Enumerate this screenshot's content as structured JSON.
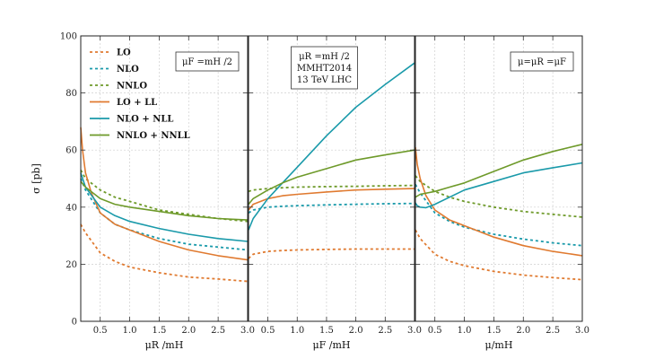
{
  "chart_data": {
    "type": "line",
    "ylabel": "σ [pb]",
    "ylim": [
      0,
      100
    ],
    "y_ticks": [
      "0",
      "20",
      "40",
      "60",
      "80",
      "100"
    ],
    "grid": true,
    "legend_placement": "top-left of first panel",
    "legend": [
      {
        "label": "LO",
        "color": "#e07a30",
        "dash": true
      },
      {
        "label": "NLO",
        "color": "#1a9aaa",
        "dash": true
      },
      {
        "label": "NNLO",
        "color": "#6e9a2a",
        "dash": true
      },
      {
        "label": "LO + LL",
        "color": "#e07a30",
        "dash": false
      },
      {
        "label": "NLO + NLL",
        "color": "#1a9aaa",
        "dash": false
      },
      {
        "label": "NNLO + NNLL",
        "color": "#6e9a2a",
        "dash": false
      }
    ],
    "panels": [
      {
        "xlabel": "μR /mH",
        "xlim": [
          0.17,
          3.0
        ],
        "x_ticks": [
          "0.5",
          "1.0",
          "1.5",
          "2.0",
          "2.5",
          "3.0"
        ],
        "annotation": [
          "μF =mH /2"
        ],
        "series": [
          {
            "name": "LO",
            "color": "#e07a30",
            "dash": true,
            "x": [
              0.17,
              0.25,
              0.5,
              0.75,
              1.0,
              1.5,
              2.0,
              2.5,
              3.0
            ],
            "y": [
              34,
              31,
              24,
              21,
              19,
              17,
              15.5,
              14.8,
              14
            ]
          },
          {
            "name": "NLO",
            "color": "#1a9aaa",
            "dash": true,
            "x": [
              0.17,
              0.25,
              0.5,
              0.75,
              1.0,
              1.5,
              2.0,
              2.5,
              3.0
            ],
            "y": [
              50,
              46,
              38,
              34,
              32,
              29,
              27,
              26,
              25
            ]
          },
          {
            "name": "NNLO",
            "color": "#6e9a2a",
            "dash": true,
            "x": [
              0.17,
              0.25,
              0.5,
              0.75,
              1.0,
              1.5,
              2.0,
              2.5,
              3.0
            ],
            "y": [
              53,
              50,
              46,
              43.5,
              42,
              39,
              37.5,
              36,
              35
            ]
          },
          {
            "name": "LO + LL",
            "color": "#e07a30",
            "dash": false,
            "x": [
              0.17,
              0.2,
              0.25,
              0.35,
              0.5,
              0.75,
              1.0,
              1.5,
              2.0,
              2.5,
              3.0
            ],
            "y": [
              68,
              60,
              52,
              45,
              38,
              34,
              32,
              28,
              25,
              23,
              21.5
            ]
          },
          {
            "name": "NLO + NLL",
            "color": "#1a9aaa",
            "dash": false,
            "x": [
              0.17,
              0.25,
              0.5,
              0.75,
              1.0,
              1.5,
              2.0,
              2.5,
              3.0
            ],
            "y": [
              52,
              47,
              40,
              37,
              35,
              32.5,
              30.5,
              29,
              28
            ]
          },
          {
            "name": "NNLO + NNLL",
            "color": "#6e9a2a",
            "dash": false,
            "x": [
              0.17,
              0.25,
              0.5,
              0.75,
              1.0,
              1.5,
              2.0,
              2.5,
              3.0
            ],
            "y": [
              49,
              47,
              43,
              41,
              40,
              38.5,
              37,
              36,
              35.5
            ]
          }
        ]
      },
      {
        "xlabel": "μF /mH",
        "xlim": [
          0.17,
          3.0
        ],
        "x_ticks": [
          "0.5",
          "1.0",
          "1.5",
          "2.0",
          "2.5",
          "3.0"
        ],
        "annotation": [
          "μR =mH /2",
          "MMHT2014",
          "13 TeV LHC"
        ],
        "series": [
          {
            "name": "LO",
            "color": "#e07a30",
            "dash": true,
            "x": [
              0.17,
              0.25,
              0.5,
              0.75,
              1.0,
              1.5,
              2.0,
              2.5,
              3.0
            ],
            "y": [
              22,
              23.5,
              24.5,
              24.8,
              25,
              25.2,
              25.3,
              25.3,
              25.3
            ]
          },
          {
            "name": "NLO",
            "color": "#1a9aaa",
            "dash": true,
            "x": [
              0.17,
              0.25,
              0.5,
              0.75,
              1.0,
              1.5,
              2.0,
              2.5,
              3.0
            ],
            "y": [
              38,
              39,
              40,
              40.3,
              40.5,
              40.8,
              41,
              41.2,
              41.3
            ]
          },
          {
            "name": "NNLO",
            "color": "#6e9a2a",
            "dash": true,
            "x": [
              0.17,
              0.25,
              0.5,
              0.75,
              1.0,
              1.5,
              2.0,
              2.5,
              3.0
            ],
            "y": [
              45.5,
              46,
              46.5,
              46.8,
              47,
              47.2,
              47.3,
              47.5,
              47.6
            ]
          },
          {
            "name": "LO + LL",
            "color": "#e07a30",
            "dash": false,
            "x": [
              0.17,
              0.25,
              0.5,
              0.75,
              1.0,
              1.5,
              2.0,
              2.5,
              3.0
            ],
            "y": [
              39,
              41,
              43,
              44,
              44.5,
              45.3,
              46,
              46.3,
              46.5
            ]
          },
          {
            "name": "NLO + NLL",
            "color": "#1a9aaa",
            "dash": false,
            "x": [
              0.17,
              0.25,
              0.5,
              0.75,
              1.0,
              1.5,
              2.0,
              2.5,
              3.0
            ],
            "y": [
              32,
              36,
              43,
              48.5,
              54,
              65,
              75,
              83,
              90.5
            ]
          },
          {
            "name": "NNLO + NNLL",
            "color": "#6e9a2a",
            "dash": false,
            "x": [
              0.17,
              0.25,
              0.5,
              0.75,
              1.0,
              1.5,
              2.0,
              2.5,
              3.0
            ],
            "y": [
              41,
              43,
              46,
              48.5,
              50.5,
              53.5,
              56.5,
              58.3,
              60
            ]
          }
        ]
      },
      {
        "xlabel": "μ/mH",
        "xlim": [
          0.17,
          3.0
        ],
        "x_ticks": [
          "0.5",
          "1.0",
          "1.5",
          "2.0",
          "2.5",
          "3.0"
        ],
        "annotation": [
          "μ=μR =μF"
        ],
        "series": [
          {
            "name": "LO",
            "color": "#e07a30",
            "dash": true,
            "x": [
              0.17,
              0.25,
              0.5,
              0.75,
              1.0,
              1.5,
              2.0,
              2.5,
              3.0
            ],
            "y": [
              32,
              29,
              23.5,
              21,
              19.5,
              17.5,
              16.2,
              15.3,
              14.6
            ]
          },
          {
            "name": "NLO",
            "color": "#1a9aaa",
            "dash": true,
            "x": [
              0.17,
              0.25,
              0.5,
              0.75,
              1.0,
              1.5,
              2.0,
              2.5,
              3.0
            ],
            "y": [
              48,
              45,
              38,
              35,
              33,
              30.5,
              28.8,
              27.5,
              26.5
            ]
          },
          {
            "name": "NNLO",
            "color": "#6e9a2a",
            "dash": true,
            "x": [
              0.17,
              0.25,
              0.5,
              0.75,
              1.0,
              1.5,
              2.0,
              2.5,
              3.0
            ],
            "y": [
              51,
              49,
              45.5,
              43.5,
              42,
              40,
              38.5,
              37.5,
              36.5
            ]
          },
          {
            "name": "LO + LL",
            "color": "#e07a30",
            "dash": false,
            "x": [
              0.17,
              0.2,
              0.25,
              0.35,
              0.5,
              0.75,
              1.0,
              1.5,
              2.0,
              2.5,
              3.0
            ],
            "y": [
              61,
              55,
              50,
              44,
              39,
              35.5,
              33.5,
              29.5,
              26.5,
              24.5,
              23
            ]
          },
          {
            "name": "NLO + NLL",
            "color": "#1a9aaa",
            "dash": false,
            "x": [
              0.17,
              0.2,
              0.25,
              0.35,
              0.5,
              0.75,
              1.0,
              1.5,
              2.0,
              2.5,
              3.0
            ],
            "y": [
              41.5,
              40.5,
              40,
              39.8,
              41,
              43.5,
              46,
              49,
              52,
              53.8,
              55.5
            ]
          },
          {
            "name": "NNLO + NNLL",
            "color": "#6e9a2a",
            "dash": false,
            "x": [
              0.17,
              0.25,
              0.5,
              0.75,
              1.0,
              1.5,
              2.0,
              2.5,
              3.0
            ],
            "y": [
              43.5,
              44.5,
              45.5,
              47,
              48.5,
              52.5,
              56.5,
              59.5,
              62
            ]
          }
        ]
      }
    ]
  }
}
